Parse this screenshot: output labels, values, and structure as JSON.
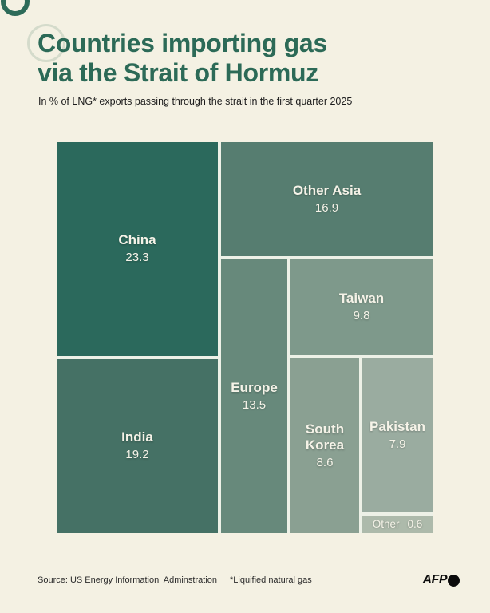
{
  "page": {
    "background_color": "#f4f1e3",
    "accent_color": "#2c6a57"
  },
  "header": {
    "title_line1": "Countries importing gas",
    "title_line2": "via the Strait of Hormuz",
    "subtitle": "In % of  LNG* exports passing through the strait in the first quarter 2025"
  },
  "chart_data": {
    "type": "treemap",
    "title": "Countries importing gas via the Strait of Hormuz",
    "subtitle": "In % of LNG* exports passing through the strait in the first quarter 2025",
    "unit": "% of LNG exports passing through the Strait of Hormuz, Q1 2025",
    "items": [
      {
        "label": "China",
        "value": 23.3,
        "color": "#2b695c"
      },
      {
        "label": "India",
        "value": 19.2,
        "color": "#457165"
      },
      {
        "label": "Other Asia",
        "value": 16.9,
        "color": "#567d70"
      },
      {
        "label": "Europe",
        "value": 13.5,
        "color": "#67897b"
      },
      {
        "label": "Taiwan",
        "value": 9.8,
        "color": "#7e998b"
      },
      {
        "label": "South Korea",
        "value": 8.6,
        "color": "#8aa092"
      },
      {
        "label": "Pakistan",
        "value": 7.9,
        "color": "#9aaca0"
      },
      {
        "label": "Other",
        "value": 0.6,
        "color": "#adbaab"
      }
    ]
  },
  "footer": {
    "source": "Source: US Energy Information  Adminstration",
    "note": "*Liquified natural gas",
    "logo_text": "AFP"
  }
}
